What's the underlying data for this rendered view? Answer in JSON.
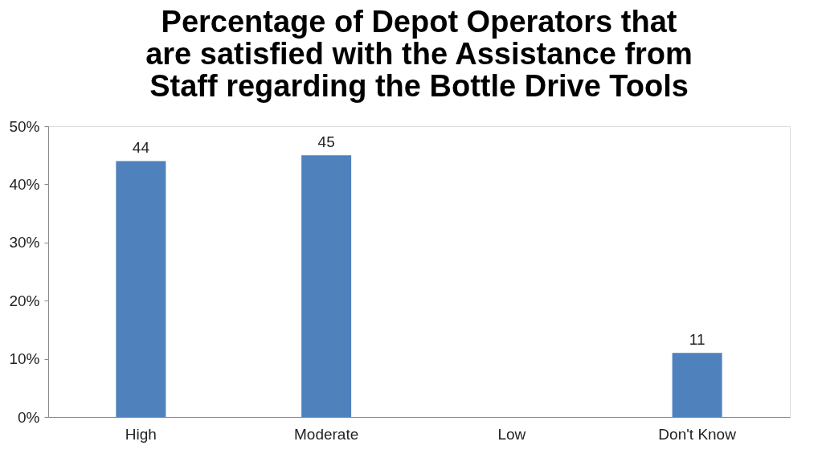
{
  "chart_data": {
    "type": "bar",
    "title": [
      "Percentage of Depot Operators that",
      "are satisfied with the Assistance from",
      "Staff regarding the Bottle Drive Tools"
    ],
    "categories": [
      "High",
      "Moderate",
      "Low",
      "Don't Know"
    ],
    "values": [
      44,
      45,
      0,
      11
    ],
    "value_labels": [
      "44",
      "45",
      null,
      "11"
    ],
    "color": "#4f81bd",
    "ylim": [
      0,
      50
    ],
    "yticks": [
      {
        "value": 0,
        "label": "0%"
      },
      {
        "value": 10,
        "label": "10%"
      },
      {
        "value": 20,
        "label": "20%"
      },
      {
        "value": 30,
        "label": "30%"
      },
      {
        "value": 40,
        "label": "40%"
      },
      {
        "value": 50,
        "label": "50%"
      }
    ],
    "grid": false
  }
}
